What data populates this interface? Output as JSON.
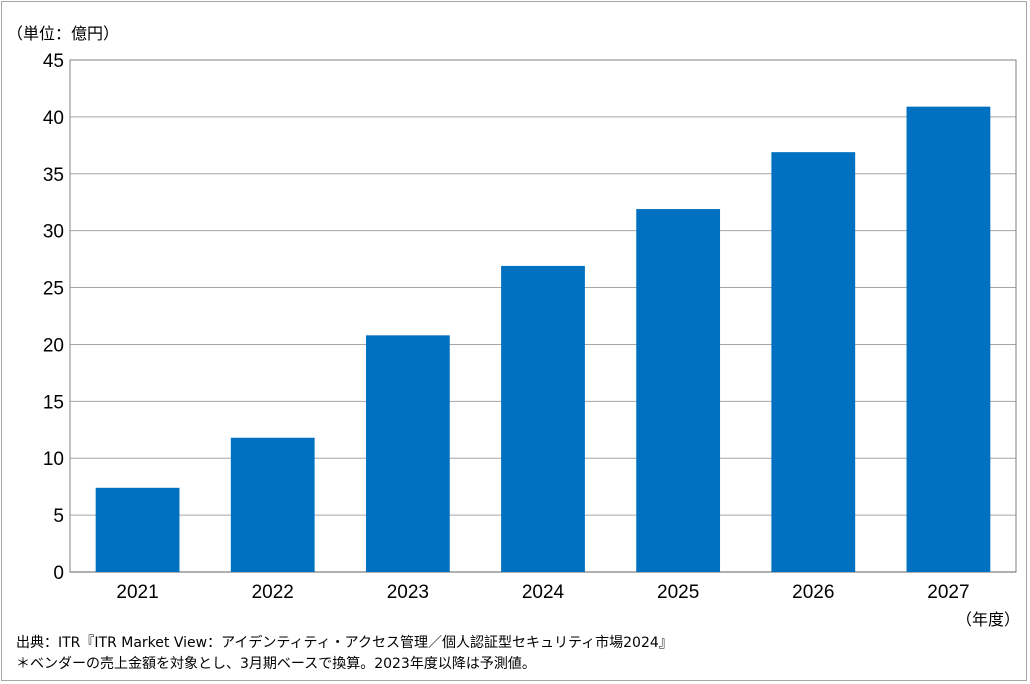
{
  "chart_data": {
    "type": "bar",
    "unit_label": "（単位：億円）",
    "xlabel": "（年度）",
    "categories": [
      "2021",
      "2022",
      "2023",
      "2024",
      "2025",
      "2026",
      "2027"
    ],
    "values": [
      7.4,
      11.8,
      20.8,
      26.9,
      31.9,
      36.9,
      40.9
    ],
    "ylim": [
      0,
      45
    ],
    "yticks": [
      "0",
      "5",
      "10",
      "15",
      "20",
      "25",
      "30",
      "35",
      "40",
      "45"
    ],
    "grid": true,
    "bar_color": "#0070c0",
    "grid_color": "#a6a6a6",
    "axis_color": "#808080"
  },
  "footer": {
    "source": "出典：ITR『ITR Market View：アイデンティティ・アクセス管理／個人認証型セキュリティ市場2024』",
    "note": "＊ベンダーの売上金額を対象とし、3月期ベースで換算。2023年度以降は予測値。"
  }
}
